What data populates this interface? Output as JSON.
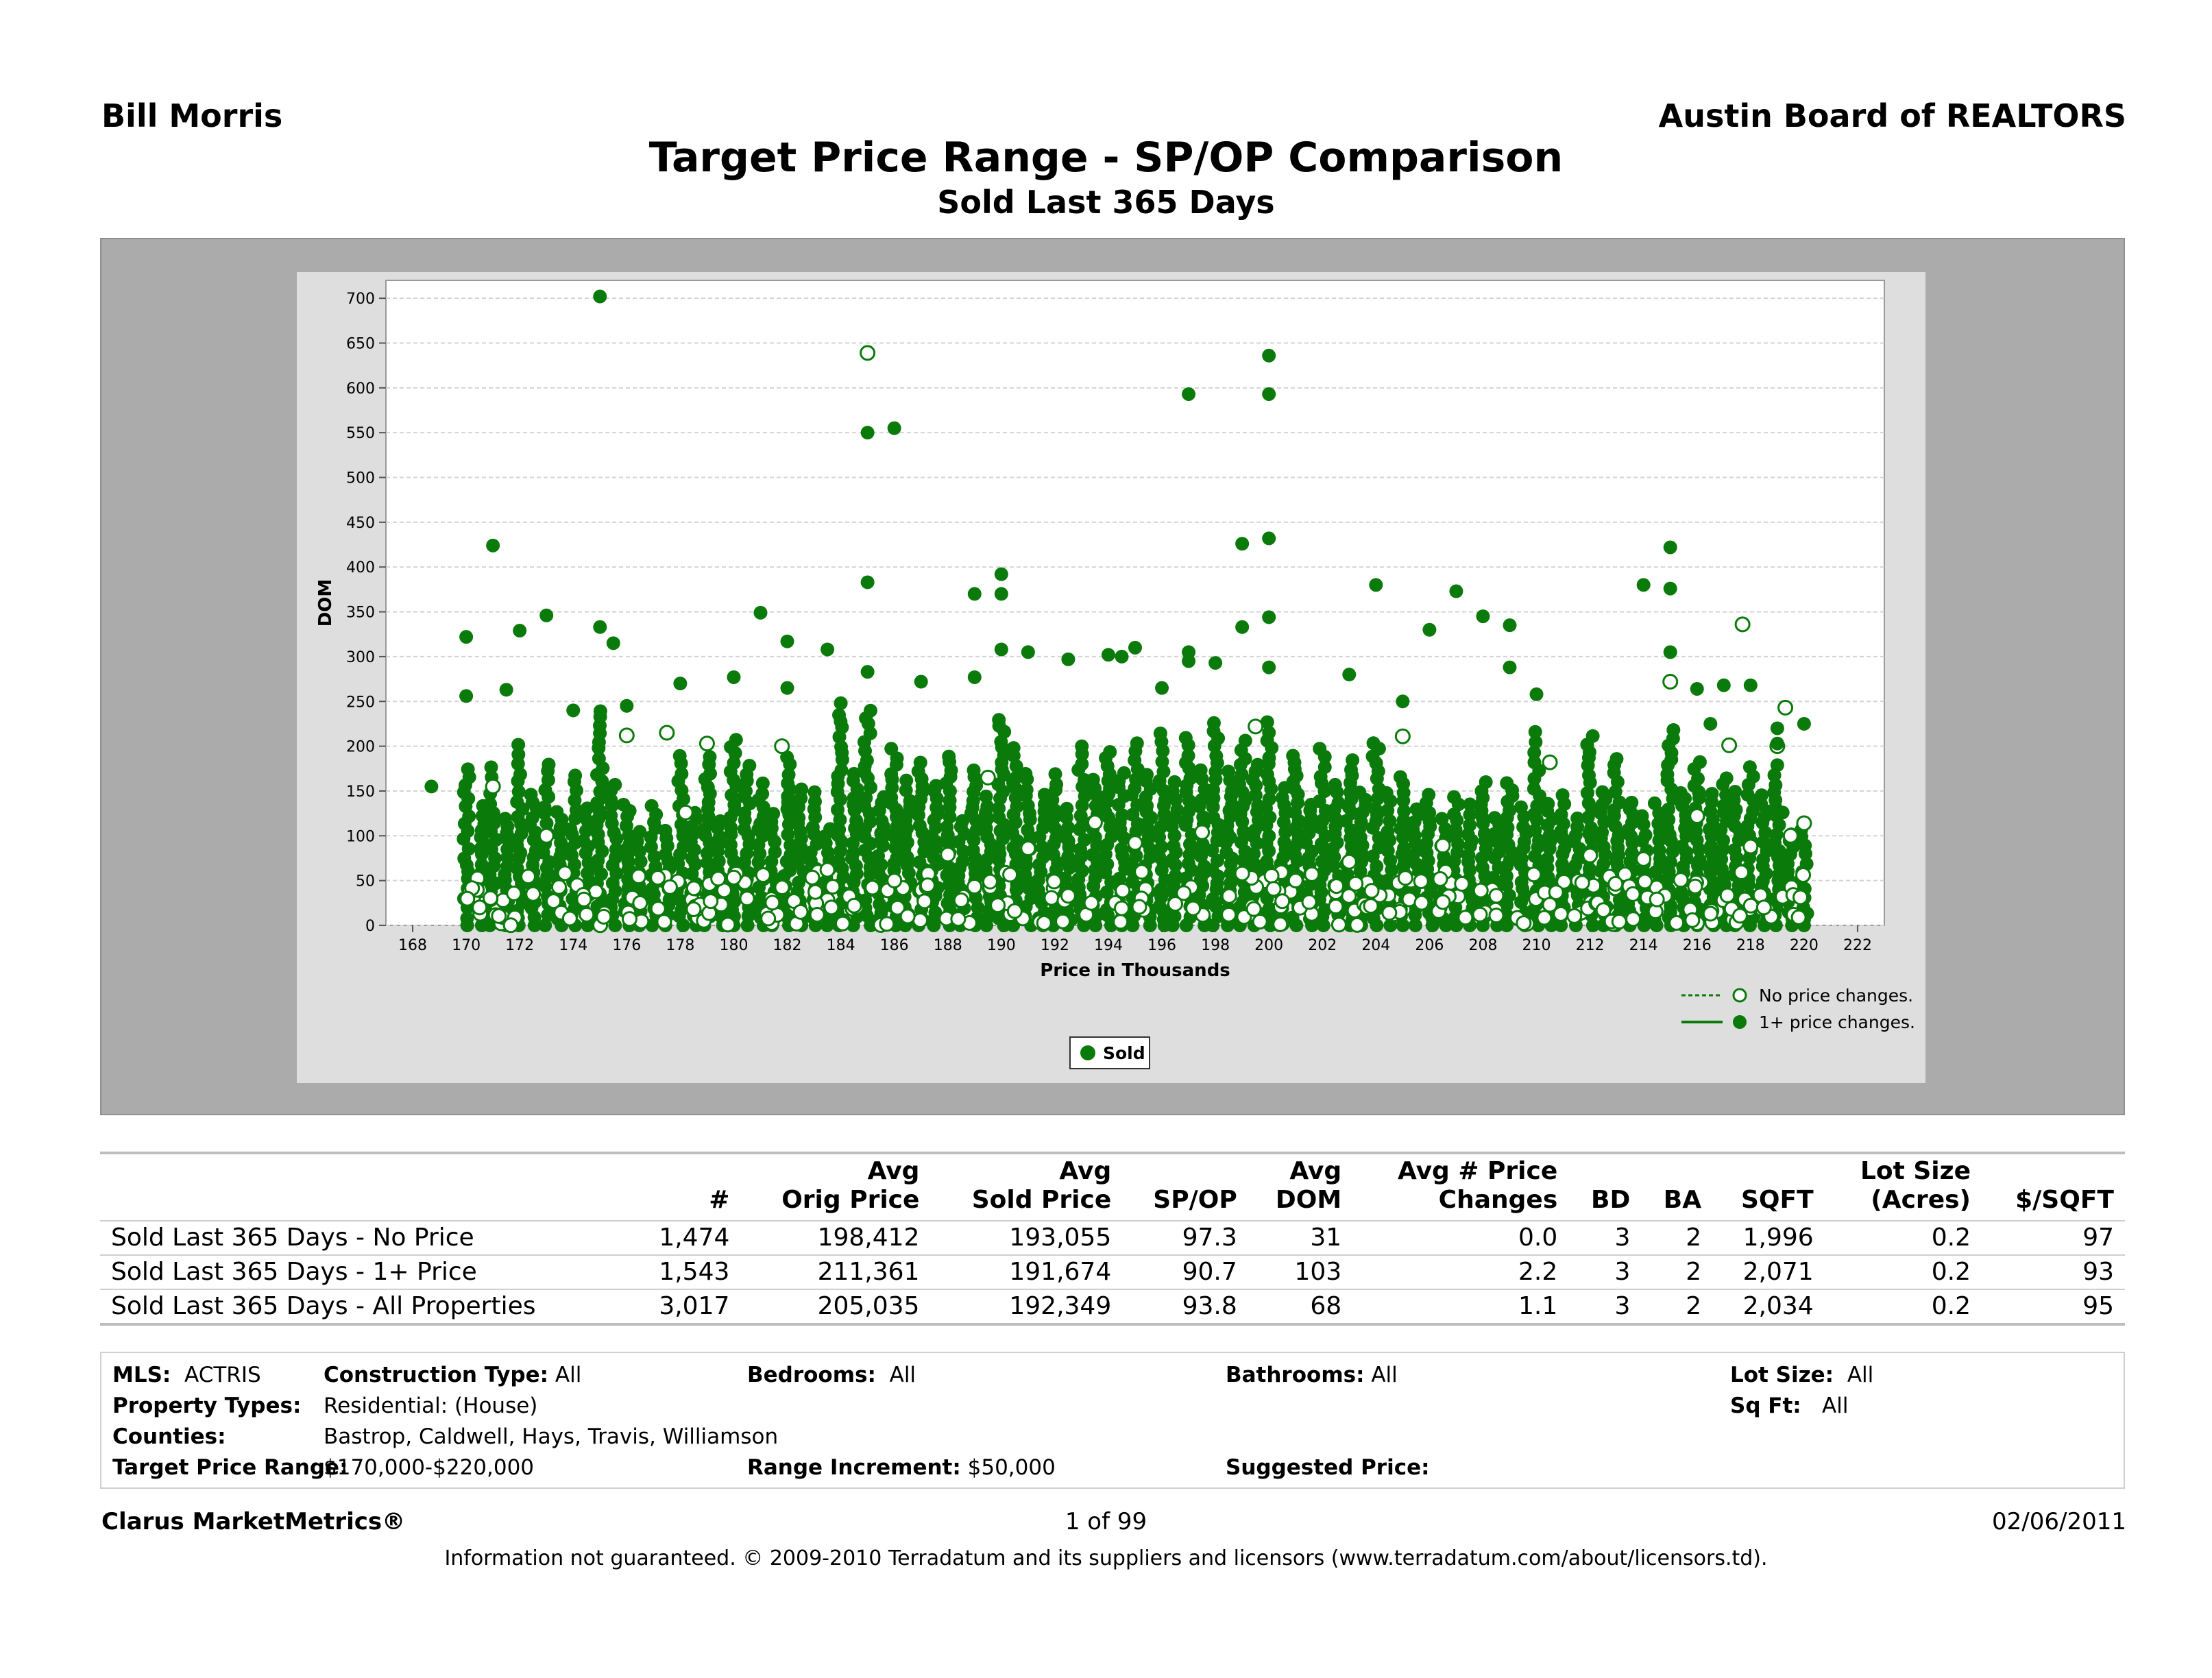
{
  "header": {
    "agent": "Bill Morris",
    "board": "Austin Board of REALTORS",
    "title": "Target Price Range - SP/OP Comparison",
    "subtitle": "Sold Last 365 Days"
  },
  "colors": {
    "series": "#0a7a0a",
    "frame": "#ababab",
    "plot_background": "#dedede",
    "grid": "#d4d4d4"
  },
  "chart_data": {
    "type": "scatter",
    "xlabel": "Price in Thousands",
    "ylabel": "DOM",
    "xlim": [
      167,
      223
    ],
    "ylim": [
      0,
      720
    ],
    "x_ticks": [
      168,
      170,
      172,
      174,
      176,
      178,
      180,
      182,
      184,
      186,
      188,
      190,
      192,
      194,
      196,
      198,
      200,
      202,
      204,
      206,
      208,
      210,
      212,
      214,
      216,
      218,
      220,
      222
    ],
    "y_ticks": [
      0,
      50,
      100,
      150,
      200,
      250,
      300,
      350,
      400,
      450,
      500,
      550,
      600,
      650,
      700
    ],
    "grid": true,
    "legend": {
      "placement": "bottom-right",
      "entries": [
        "No price changes.",
        "1+ price changes."
      ],
      "series_box": "Sold"
    },
    "series": [
      {
        "name": "No price changes.",
        "marker": "open-circle",
        "points": [
          [
            185,
            639
          ],
          [
            199.5,
            222
          ],
          [
            215,
            272
          ],
          [
            217.7,
            336
          ],
          [
            219.3,
            243
          ],
          [
            217.2,
            201
          ],
          [
            219.0,
            200
          ],
          [
            171,
            155
          ],
          [
            173,
            100
          ],
          [
            176.0,
            212
          ],
          [
            177.5,
            215
          ],
          [
            178.2,
            126
          ],
          [
            179.0,
            203
          ],
          [
            181.8,
            200
          ],
          [
            183.5,
            62
          ],
          [
            186.0,
            50
          ],
          [
            188.0,
            79
          ],
          [
            189.5,
            165
          ],
          [
            191.0,
            86
          ],
          [
            193.5,
            115
          ],
          [
            195.0,
            92
          ],
          [
            197.5,
            104
          ],
          [
            199.0,
            58
          ],
          [
            201.0,
            50
          ],
          [
            203.0,
            71
          ],
          [
            205.0,
            211
          ],
          [
            206.5,
            89
          ],
          [
            208.5,
            33
          ],
          [
            210.5,
            182
          ],
          [
            212.0,
            78
          ],
          [
            214.0,
            74
          ],
          [
            216.0,
            122
          ],
          [
            218.0,
            88
          ],
          [
            219.5,
            100
          ],
          [
            220.0,
            114
          ],
          [
            170.5,
            20
          ],
          [
            172.5,
            35
          ],
          [
            174.5,
            12
          ],
          [
            176.5,
            25
          ],
          [
            178.5,
            18
          ],
          [
            180.5,
            30
          ],
          [
            182.5,
            15
          ],
          [
            184.5,
            22
          ],
          [
            186.5,
            10
          ],
          [
            188.5,
            28
          ],
          [
            190.5,
            16
          ],
          [
            192.5,
            33
          ],
          [
            194.5,
            19
          ],
          [
            196.5,
            24
          ],
          [
            198.5,
            12
          ],
          [
            200.5,
            27
          ],
          [
            202.5,
            21
          ],
          [
            204.5,
            14
          ],
          [
            206.5,
            26
          ],
          [
            208.5,
            11
          ],
          [
            210.5,
            23
          ],
          [
            212.5,
            17
          ],
          [
            214.5,
            29
          ],
          [
            216.5,
            13
          ],
          [
            218.5,
            20
          ],
          [
            219.8,
            9
          ]
        ]
      },
      {
        "name": "1+ price changes.",
        "marker": "filled-circle",
        "points": [
          [
            175,
            702
          ],
          [
            185,
            550
          ],
          [
            186,
            555
          ],
          [
            197,
            593
          ],
          [
            200,
            636
          ],
          [
            200,
            593
          ],
          [
            171,
            424
          ],
          [
            185,
            383
          ],
          [
            190,
            392
          ],
          [
            199,
            426
          ],
          [
            200,
            432
          ],
          [
            204,
            380
          ],
          [
            214,
            380
          ],
          [
            215,
            422
          ],
          [
            215,
            376
          ],
          [
            170,
            322
          ],
          [
            172,
            329
          ],
          [
            173,
            346
          ],
          [
            175,
            333
          ],
          [
            175.5,
            315
          ],
          [
            181,
            349
          ],
          [
            182,
            317
          ],
          [
            183.5,
            308
          ],
          [
            189,
            370
          ],
          [
            190,
            370
          ],
          [
            190,
            308
          ],
          [
            191,
            305
          ],
          [
            192.5,
            297
          ],
          [
            194,
            302
          ],
          [
            194.5,
            300
          ],
          [
            195,
            310
          ],
          [
            197,
            295
          ],
          [
            197,
            305
          ],
          [
            199,
            333
          ],
          [
            200,
            344
          ],
          [
            200,
            288
          ],
          [
            198,
            293
          ],
          [
            206,
            330
          ],
          [
            207,
            373
          ],
          [
            208,
            345
          ],
          [
            209,
            335
          ],
          [
            209,
            288
          ],
          [
            215,
            305
          ],
          [
            216,
            264
          ],
          [
            217,
            268
          ],
          [
            218,
            268
          ],
          [
            220,
            225
          ],
          [
            170,
            256
          ],
          [
            171.5,
            263
          ],
          [
            174,
            240
          ],
          [
            176,
            245
          ],
          [
            178,
            270
          ],
          [
            180,
            277
          ],
          [
            182,
            265
          ],
          [
            184,
            248
          ],
          [
            185,
            283
          ],
          [
            187,
            272
          ],
          [
            189,
            277
          ],
          [
            196,
            265
          ],
          [
            203,
            280
          ],
          [
            205,
            250
          ],
          [
            210,
            258
          ],
          [
            216.5,
            225
          ],
          [
            219,
            203
          ],
          [
            219,
            220
          ],
          [
            168.7,
            155
          ],
          [
            219.2,
            126
          ]
        ],
        "columns": [
          {
            "x": 170,
            "max": 180
          },
          {
            "x": 170.6,
            "max": 140
          },
          {
            "x": 171,
            "max": 180
          },
          {
            "x": 171.5,
            "max": 120
          },
          {
            "x": 172,
            "max": 210
          },
          {
            "x": 172.5,
            "max": 150
          },
          {
            "x": 173,
            "max": 180
          },
          {
            "x": 173.5,
            "max": 130
          },
          {
            "x": 174,
            "max": 170
          },
          {
            "x": 174.5,
            "max": 140
          },
          {
            "x": 175,
            "max": 240
          },
          {
            "x": 175.5,
            "max": 160
          },
          {
            "x": 176,
            "max": 140
          },
          {
            "x": 176.5,
            "max": 110
          },
          {
            "x": 177,
            "max": 140
          },
          {
            "x": 177.5,
            "max": 110
          },
          {
            "x": 178,
            "max": 200
          },
          {
            "x": 178.5,
            "max": 130
          },
          {
            "x": 179,
            "max": 190
          },
          {
            "x": 179.5,
            "max": 120
          },
          {
            "x": 180,
            "max": 210
          },
          {
            "x": 180.5,
            "max": 180
          },
          {
            "x": 181,
            "max": 160
          },
          {
            "x": 181.5,
            "max": 130
          },
          {
            "x": 182,
            "max": 190
          },
          {
            "x": 182.5,
            "max": 160
          },
          {
            "x": 183,
            "max": 150
          },
          {
            "x": 183.5,
            "max": 110
          },
          {
            "x": 184,
            "max": 240
          },
          {
            "x": 184.5,
            "max": 170
          },
          {
            "x": 185,
            "max": 240
          },
          {
            "x": 185.5,
            "max": 150
          },
          {
            "x": 186,
            "max": 200
          },
          {
            "x": 186.5,
            "max": 170
          },
          {
            "x": 187,
            "max": 190
          },
          {
            "x": 187.5,
            "max": 160
          },
          {
            "x": 188,
            "max": 190
          },
          {
            "x": 188.5,
            "max": 120
          },
          {
            "x": 189,
            "max": 180
          },
          {
            "x": 189.5,
            "max": 150
          },
          {
            "x": 190,
            "max": 230
          },
          {
            "x": 190.5,
            "max": 200
          },
          {
            "x": 191,
            "max": 170
          },
          {
            "x": 191.5,
            "max": 150
          },
          {
            "x": 192,
            "max": 170
          },
          {
            "x": 192.5,
            "max": 140
          },
          {
            "x": 193,
            "max": 200
          },
          {
            "x": 193.5,
            "max": 170
          },
          {
            "x": 194,
            "max": 200
          },
          {
            "x": 194.5,
            "max": 180
          },
          {
            "x": 195,
            "max": 210
          },
          {
            "x": 195.5,
            "max": 170
          },
          {
            "x": 196,
            "max": 220
          },
          {
            "x": 196.5,
            "max": 170
          },
          {
            "x": 197,
            "max": 220
          },
          {
            "x": 197.5,
            "max": 180
          },
          {
            "x": 198,
            "max": 230
          },
          {
            "x": 198.5,
            "max": 180
          },
          {
            "x": 199,
            "max": 210
          },
          {
            "x": 199.5,
            "max": 180
          },
          {
            "x": 200,
            "max": 230
          },
          {
            "x": 200.5,
            "max": 160
          },
          {
            "x": 201,
            "max": 190
          },
          {
            "x": 201.5,
            "max": 140
          },
          {
            "x": 202,
            "max": 200
          },
          {
            "x": 202.5,
            "max": 160
          },
          {
            "x": 203,
            "max": 190
          },
          {
            "x": 203.5,
            "max": 150
          },
          {
            "x": 204,
            "max": 210
          },
          {
            "x": 204.5,
            "max": 150
          },
          {
            "x": 205,
            "max": 170
          },
          {
            "x": 205.5,
            "max": 130
          },
          {
            "x": 206,
            "max": 150
          },
          {
            "x": 206.5,
            "max": 120
          },
          {
            "x": 207,
            "max": 150
          },
          {
            "x": 207.5,
            "max": 140
          },
          {
            "x": 208,
            "max": 160
          },
          {
            "x": 208.5,
            "max": 130
          },
          {
            "x": 209,
            "max": 160
          },
          {
            "x": 209.5,
            "max": 140
          },
          {
            "x": 210,
            "max": 220
          },
          {
            "x": 210.5,
            "max": 140
          },
          {
            "x": 211,
            "max": 150
          },
          {
            "x": 211.5,
            "max": 120
          },
          {
            "x": 212,
            "max": 220
          },
          {
            "x": 212.5,
            "max": 150
          },
          {
            "x": 213,
            "max": 190
          },
          {
            "x": 213.5,
            "max": 140
          },
          {
            "x": 214,
            "max": 130
          },
          {
            "x": 214.5,
            "max": 140
          },
          {
            "x": 215,
            "max": 220
          },
          {
            "x": 215.5,
            "max": 150
          },
          {
            "x": 216,
            "max": 190
          },
          {
            "x": 216.5,
            "max": 150
          },
          {
            "x": 217,
            "max": 170
          },
          {
            "x": 217.5,
            "max": 150
          },
          {
            "x": 218,
            "max": 180
          },
          {
            "x": 218.5,
            "max": 150
          },
          {
            "x": 219,
            "max": 180
          },
          {
            "x": 219.5,
            "max": 110
          },
          {
            "x": 220,
            "max": 110
          }
        ]
      }
    ]
  },
  "table": {
    "headers": [
      {
        "l1": "",
        "l2": ""
      },
      {
        "l1": "",
        "l2": "#"
      },
      {
        "l1": "Avg",
        "l2": "Orig Price"
      },
      {
        "l1": "Avg",
        "l2": "Sold Price"
      },
      {
        "l1": "",
        "l2": "SP/OP"
      },
      {
        "l1": "Avg",
        "l2": "DOM"
      },
      {
        "l1": "Avg # Price",
        "l2": "Changes"
      },
      {
        "l1": "",
        "l2": "BD"
      },
      {
        "l1": "",
        "l2": "BA"
      },
      {
        "l1": "",
        "l2": "SQFT"
      },
      {
        "l1": "Lot Size",
        "l2": "(Acres)"
      },
      {
        "l1": "",
        "l2": "$/SQFT"
      }
    ],
    "rows": [
      [
        "Sold Last 365 Days - No Price",
        "1,474",
        "198,412",
        "193,055",
        "97.3",
        "31",
        "0.0",
        "3",
        "2",
        "1,996",
        "0.2",
        "97"
      ],
      [
        "Sold Last 365 Days - 1+ Price",
        "1,543",
        "211,361",
        "191,674",
        "90.7",
        "103",
        "2.2",
        "3",
        "2",
        "2,071",
        "0.2",
        "93"
      ],
      [
        "Sold Last 365 Days - All Properties",
        "3,017",
        "205,035",
        "192,349",
        "93.8",
        "68",
        "1.1",
        "3",
        "2",
        "2,034",
        "0.2",
        "95"
      ]
    ]
  },
  "criteria": {
    "mls_label": "MLS:",
    "mls": "ACTRIS",
    "construction_label": "Construction Type:",
    "construction": "All",
    "bedrooms_label": "Bedrooms:",
    "bedrooms": "All",
    "bathrooms_label": "Bathrooms:",
    "bathrooms": "All",
    "lot_label": "Lot Size:",
    "lot": "All",
    "ptype_label": "Property Types:",
    "ptype": "Residential: (House)",
    "sqft_label": "Sq Ft:",
    "sqft": "All",
    "counties_label": "Counties:",
    "counties": "Bastrop, Caldwell, Hays, Travis, Williamson",
    "range_label": "Target Price Range:",
    "range": "$170,000-$220,000",
    "increment_label": "Range Increment:",
    "increment": "$50,000",
    "suggested_label": "Suggested Price:",
    "suggested": ""
  },
  "footer": {
    "brand": "Clarus MarketMetrics®",
    "page": "1 of 99",
    "date": "02/06/2011",
    "disclaimer": "Information not guaranteed.  © 2009-2010 Terradatum and its suppliers and licensors (www.terradatum.com/about/licensors.td)."
  }
}
